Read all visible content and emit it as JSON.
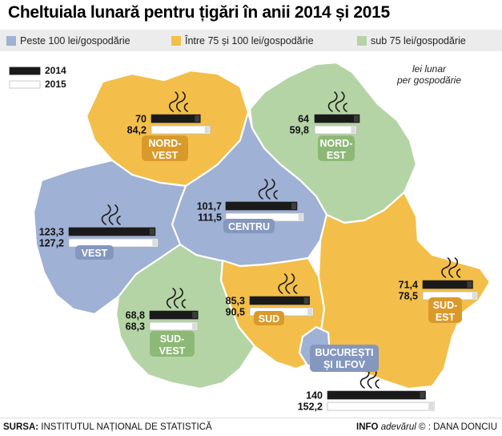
{
  "title": "Cheltuiala lunară pentru țigări în anii 2014 și 2015",
  "legend": {
    "categories": [
      {
        "label": "Peste 100 lei/gospodărie",
        "color": "#9fb1d4"
      },
      {
        "label": "Între 75 și 100 lei/gospodărie",
        "color": "#f3bf4a"
      },
      {
        "label": "sub 75 lei/gospodărie",
        "color": "#b5d4a6"
      }
    ],
    "years": [
      {
        "label": "2014",
        "color": "#1a1a1a"
      },
      {
        "label": "2015",
        "color": "#ffffff"
      }
    ]
  },
  "unit_note": [
    "lei lunar",
    "per gospodărie"
  ],
  "chart_data": {
    "type": "bar",
    "categories": [
      "NORD-VEST",
      "NORD-EST",
      "CENTRU",
      "VEST",
      "SUD",
      "SUD-EST",
      "SUD-VEST",
      "BUCUREȘTI ȘI ILFOV"
    ],
    "series": [
      {
        "name": "2014",
        "values": [
          70,
          64,
          101.7,
          123.3,
          85.3,
          71.4,
          68.8,
          140
        ]
      },
      {
        "name": "2015",
        "values": [
          84.2,
          59.8,
          111.5,
          127.2,
          90.5,
          78.5,
          68.3,
          152.2
        ]
      }
    ],
    "value_labels": {
      "2014": [
        "70",
        "64",
        "101,7",
        "123,3",
        "85,3",
        "71,4",
        "68,8",
        "140"
      ],
      "2015": [
        "84,2",
        "59,8",
        "111,5",
        "127,2",
        "90,5",
        "78,5",
        "68,3",
        "152,2"
      ]
    },
    "region_labels": [
      [
        "NORD-",
        "VEST"
      ],
      [
        "NORD-",
        "EST"
      ],
      [
        "CENTRU"
      ],
      [
        "VEST"
      ],
      [
        "SUD"
      ],
      [
        "SUD-",
        "EST"
      ],
      [
        "SUD-",
        "VEST"
      ],
      [
        "BUCUREȘTI",
        "ȘI ILFOV"
      ]
    ],
    "region_category": [
      "orange",
      "green",
      "blue",
      "blue",
      "orange",
      "orange",
      "green",
      "blue"
    ],
    "colors": {
      "blue": "#9fb1d4",
      "orange": "#f3bf4a",
      "green": "#b5d4a6",
      "blue_dark": "#8497bf",
      "orange_dark": "#d99a2b",
      "green_dark": "#8db876"
    }
  },
  "footer": {
    "source_label": "SURSA:",
    "source_text": "INSTITUTUL NAȚIONAL DE STATISTICĂ",
    "info_label": "INFO",
    "brand": "adevărul",
    "copyright": "©",
    "author": ": DANA DONCIU"
  }
}
